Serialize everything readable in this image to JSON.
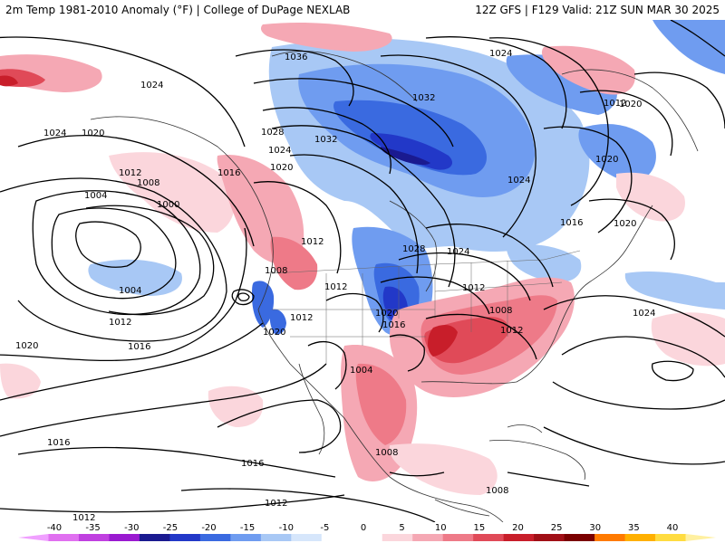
{
  "header": {
    "title": "2m Temp 1981-2010 Anomaly (°F) | College of DuPage NEXLAB",
    "run_info": "12Z GFS | F129 Valid: 21Z SUN MAR 30 2025"
  },
  "isobars": [
    {
      "label": "1036"
    },
    {
      "label": "1024"
    },
    {
      "label": "1032"
    },
    {
      "label": "1032"
    },
    {
      "label": "1020"
    },
    {
      "label": "1024"
    },
    {
      "label": "1028"
    },
    {
      "label": "1024"
    },
    {
      "label": "1020"
    },
    {
      "label": "1024"
    },
    {
      "label": "1020"
    },
    {
      "label": "1016"
    },
    {
      "label": "1012"
    },
    {
      "label": "1008"
    },
    {
      "label": "1004"
    },
    {
      "label": "1000"
    },
    {
      "label": "1004"
    },
    {
      "label": "1012"
    },
    {
      "label": "1016"
    },
    {
      "label": "1020"
    },
    {
      "label": "1024"
    },
    {
      "label": "1020"
    },
    {
      "label": "1016"
    },
    {
      "label": "1020"
    },
    {
      "label": "1012"
    },
    {
      "label": "1028"
    },
    {
      "label": "1024"
    },
    {
      "label": "1012"
    },
    {
      "label": "1008"
    },
    {
      "label": "1012"
    },
    {
      "label": "1012"
    },
    {
      "label": "1020"
    },
    {
      "label": "1016"
    },
    {
      "label": "1012"
    },
    {
      "label": "1008"
    },
    {
      "label": "1012"
    },
    {
      "label": "1020"
    },
    {
      "label": "1024"
    },
    {
      "label": "1004"
    },
    {
      "label": "1008"
    },
    {
      "label": "1008"
    },
    {
      "label": "1016"
    },
    {
      "label": "1016"
    },
    {
      "label": "1012"
    },
    {
      "label": "1012"
    }
  ],
  "legend": {
    "ticks": [
      "-40",
      "-35",
      "-30",
      "-25",
      "-20",
      "-15",
      "-10",
      "-5",
      "0",
      "5",
      "10",
      "15",
      "20",
      "25",
      "30",
      "35",
      "40"
    ],
    "colors": [
      "#f0a0ff",
      "#e070f0",
      "#c040e0",
      "#9a1ad0",
      "#1a1a90",
      "#2238c8",
      "#3a6ae0",
      "#6f9cf0",
      "#a8c8f5",
      "#d6e6fb",
      "#ffffff",
      "#ffffff",
      "#fbd6dc",
      "#f5a8b4",
      "#ee7a88",
      "#e04a58",
      "#c81e2a",
      "#a00f16",
      "#7a0000",
      "#ff7a00",
      "#ffb000",
      "#ffdc40",
      "#fff0a0"
    ]
  }
}
